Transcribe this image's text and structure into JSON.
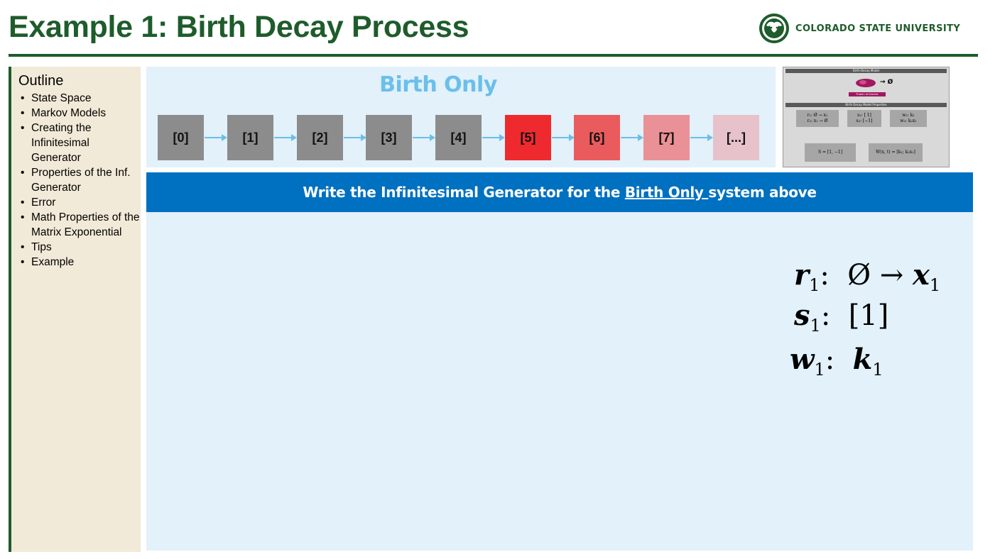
{
  "slide": {
    "title": "Example 1: Birth Decay Process",
    "university": "COLORADO STATE UNIVERSITY"
  },
  "outline": {
    "heading": "Outline",
    "items": [
      "State Space",
      "Markov Models",
      "Creating the Infinitesimal Generator",
      "Properties of the Inf. Generator",
      "Error",
      "Math Properties of the Matrix Exponential",
      "Tips",
      "Example"
    ]
  },
  "diagram": {
    "title": "Birth Only",
    "states": [
      "[0]",
      "[1]",
      "[2]",
      "[3]",
      "[4]",
      "[5]",
      "[6]",
      "[7]",
      "[...]"
    ],
    "state_colors": [
      "#8c8c8c",
      "#8c8c8c",
      "#8c8c8c",
      "#8c8c8c",
      "#8c8c8c",
      "#ee2a2e",
      "#ea5b5e",
      "#ea9197",
      "#e7c2cb"
    ],
    "arrow_color": "#6bbfeb"
  },
  "thumbnail": {
    "header": "Birth-Decay Model",
    "protein_label": "Protein of Interest",
    "empty_set": "→ Ø",
    "props_header": "Birth Decay Model Properties",
    "reactions": "r₁: Ø → x₁\nr₂: x₁ → Ø",
    "stoich": "s₁: [ 1]\ns₂: [−1]",
    "weights": "w₁: k₁\nw₂: k₂x₁",
    "S_matrix": "S = [1,  −1]",
    "W_vector": "W(x, t) = [k₁; k₂x₁]"
  },
  "task": {
    "prefix": "Write the Infinitesimal Generator for the ",
    "emphasis": "Birth Only ",
    "suffix": "system above"
  },
  "equations": {
    "r_var": "r",
    "r_sub": "1",
    "r_rhs": ":  Ø → ",
    "r_x": "x",
    "r_x_sub": "1",
    "s_var": "s",
    "s_sub": "1",
    "s_rhs": ":  [1]",
    "w_var": "w",
    "w_sub": "1",
    "w_sep": ":  ",
    "w_k": "k",
    "w_k_sub": "1"
  },
  "colors": {
    "csu_green": "#1e5c2b",
    "banner_blue": "#0070c0",
    "panel_bg": "#e2f1fa",
    "sidebar_bg": "#f2ead8"
  }
}
